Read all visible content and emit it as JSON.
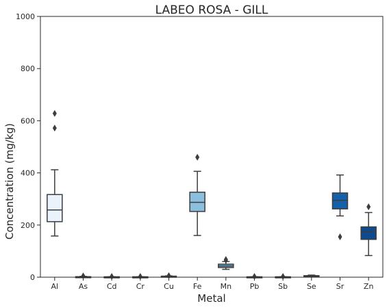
{
  "chart_data": {
    "type": "box",
    "title": "LABEO ROSA - GILL",
    "xlabel": "Metal",
    "ylabel": "Concentration (mg/kg)",
    "ylim": [
      0,
      1000
    ],
    "yticks": [
      0,
      200,
      400,
      600,
      800,
      1000
    ],
    "grid": false,
    "categories": [
      "Al",
      "As",
      "Cd",
      "Cr",
      "Cu",
      "Fe",
      "Mn",
      "Pb",
      "Sb",
      "Se",
      "Sr",
      "Zn"
    ],
    "boxes": [
      {
        "whisker_low": 158,
        "q1": 213,
        "median": 258,
        "q3": 317,
        "whisker_high": 412,
        "outliers": [
          572,
          628
        ],
        "color": "#eaf2fb"
      },
      {
        "whisker_low": 0,
        "q1": 1,
        "median": 1.5,
        "q3": 2,
        "whisker_high": 3,
        "outliers": [
          5
        ],
        "color": "#e4eef9"
      },
      {
        "whisker_low": 0,
        "q1": 0.5,
        "median": 1,
        "q3": 1.5,
        "whisker_high": 2,
        "outliers": [
          3
        ],
        "color": "#d8e7f5"
      },
      {
        "whisker_low": 0,
        "q1": 0.5,
        "median": 1,
        "q3": 1.5,
        "whisker_high": 2,
        "outliers": [
          3
        ],
        "color": "#c6dbef"
      },
      {
        "whisker_low": 1,
        "q1": 2,
        "median": 3,
        "q3": 4,
        "whisker_high": 5,
        "outliers": [
          6
        ],
        "color": "#b0d2e8"
      },
      {
        "whisker_low": 160,
        "q1": 252,
        "median": 287,
        "q3": 326,
        "whisker_high": 406,
        "outliers": [
          460
        ],
        "color": "#8cbfdd"
      },
      {
        "whisker_low": 30,
        "q1": 37,
        "median": 43,
        "q3": 50,
        "whisker_high": 60,
        "outliers": [
          65,
          68
        ],
        "color": "#6aaed6"
      },
      {
        "whisker_low": 0,
        "q1": 0.5,
        "median": 1,
        "q3": 1.5,
        "whisker_high": 2,
        "outliers": [
          3
        ],
        "color": "#4a98c9"
      },
      {
        "whisker_low": 0,
        "q1": 0.5,
        "median": 1,
        "q3": 1.5,
        "whisker_high": 2,
        "outliers": [
          3
        ],
        "color": "#3282be"
      },
      {
        "whisker_low": 2,
        "q1": 3,
        "median": 4,
        "q3": 6,
        "whisker_high": 8,
        "outliers": [],
        "color": "#1f6eb3"
      },
      {
        "whisker_low": 235,
        "q1": 262,
        "median": 295,
        "q3": 323,
        "whisker_high": 392,
        "outliers": [
          155
        ],
        "color": "#1561a9"
      },
      {
        "whisker_low": 83,
        "q1": 145,
        "median": 175,
        "q3": 193,
        "whisker_high": 248,
        "outliers": [
          270
        ],
        "color": "#0e4a8e"
      }
    ]
  }
}
